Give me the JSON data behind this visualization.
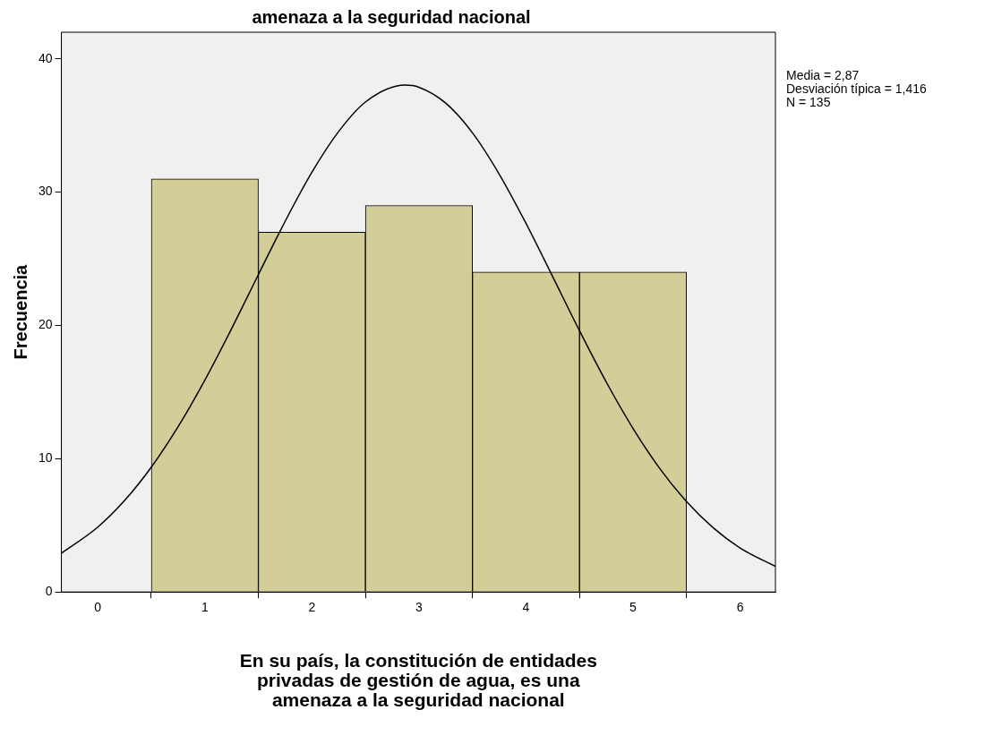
{
  "chart_data": {
    "type": "histogram",
    "title": "amenaza a la seguridad nacional",
    "xlabel": "En su país, la constitución de entidades privadas de gestión de agua, es una amenaza a la seguridad nacional",
    "ylabel": "Frecuencia",
    "bins": [
      0.5,
      1.5,
      2.5,
      3.5,
      4.5,
      5.5
    ],
    "series": [
      {
        "color": "#d3cd98",
        "values": [
          31,
          27,
          29,
          24,
          24
        ]
      },
      {
        "type": "line",
        "color": "#000000",
        "x": [
          -0.34,
          0,
          0.25,
          0.5,
          0.75,
          1,
          1.25,
          1.5,
          1.75,
          2,
          2.25,
          2.5,
          2.87,
          3,
          3.25,
          3.5,
          3.75,
          4,
          4.25,
          4.5,
          4.75,
          5,
          5.25,
          5.5,
          5.75,
          6,
          6.33
        ],
        "values": [
          2.91,
          4.87,
          6.86,
          9.37,
          12.4,
          15.9,
          19.76,
          23.81,
          27.81,
          31.49,
          34.55,
          36.76,
          38.03,
          37.87,
          36.68,
          34.45,
          31.35,
          27.66,
          23.65,
          19.6,
          15.75,
          12.27,
          9.26,
          6.78,
          4.81,
          3.3,
          1.92
        ]
      }
    ],
    "xlim": [
      -0.34,
      6.33
    ],
    "xticks": [
      0,
      1,
      2,
      3,
      4,
      5,
      6
    ],
    "ylim": [
      0,
      42
    ],
    "yticks": [
      0,
      10,
      20,
      30,
      40
    ],
    "grid": false,
    "legend": false,
    "marker": "none",
    "line_style": "solid",
    "annotations": [
      "Media = 2,87",
      "Desviación típica = 1,416",
      "N = 135"
    ]
  }
}
